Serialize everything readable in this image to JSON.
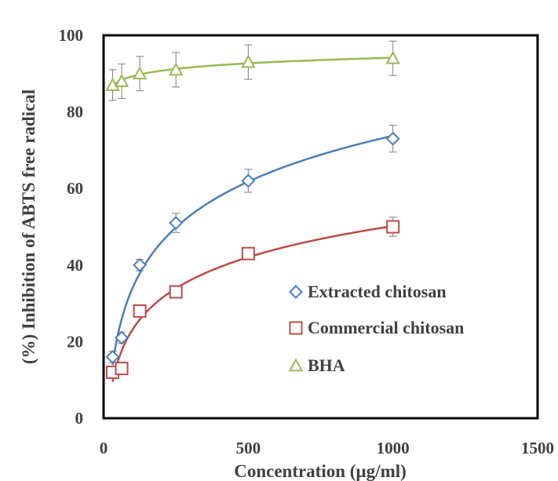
{
  "chart_data": {
    "type": "scatter",
    "title": "",
    "xlabel": "Concentration (µg/ml)",
    "ylabel": "(%) Inhibition of ABTS free radical",
    "xlim": [
      0,
      1500
    ],
    "ylim": [
      0,
      100
    ],
    "xticks": [
      0,
      500,
      1000,
      1500
    ],
    "yticks": [
      0,
      20,
      40,
      60,
      80,
      100
    ],
    "grid": false,
    "legend_position": "center-right",
    "series": [
      {
        "name": "Extracted chitosan",
        "marker": "diamond",
        "color": "#4a7ebb",
        "x": [
          31.25,
          62.5,
          125,
          250,
          500,
          1000
        ],
        "y": [
          16,
          21,
          40,
          51,
          62,
          73
        ],
        "error": [
          1.5,
          1.5,
          1.5,
          2.5,
          3,
          3.5
        ],
        "trendline": "logarithmic"
      },
      {
        "name": "Commercial chitosan",
        "marker": "square",
        "color": "#be4b48",
        "x": [
          31.25,
          62.5,
          125,
          250,
          500,
          1000
        ],
        "y": [
          12,
          13,
          28,
          33,
          43,
          50
        ],
        "error": [
          1,
          1,
          1,
          1.5,
          1.5,
          2.5
        ],
        "trendline": "logarithmic"
      },
      {
        "name": "BHA",
        "marker": "triangle",
        "color": "#98b954",
        "x": [
          31.25,
          62.5,
          125,
          250,
          500,
          1000
        ],
        "y": [
          87,
          88,
          90,
          91,
          93,
          94
        ],
        "error": [
          4,
          4.5,
          4.5,
          4.5,
          4.5,
          4.5
        ],
        "trendline": "logarithmic"
      }
    ]
  }
}
